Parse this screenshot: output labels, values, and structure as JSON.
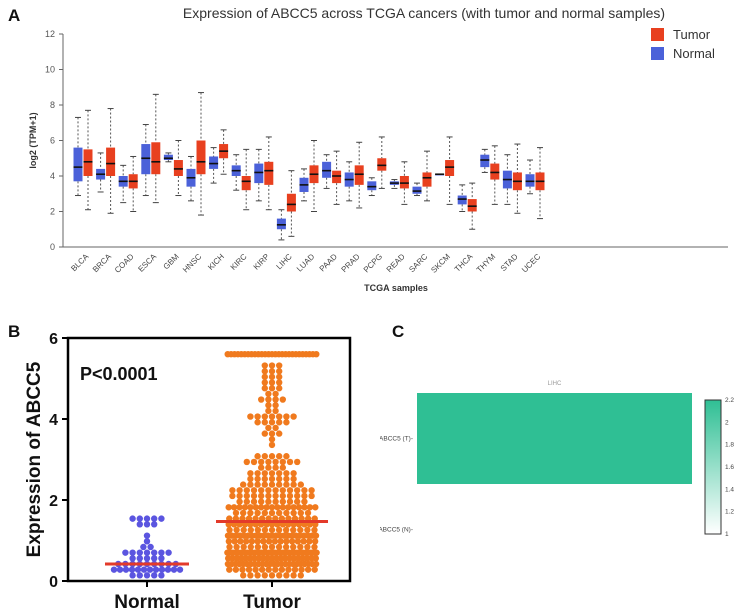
{
  "panels": {
    "a": "A",
    "b": "B",
    "c": "C"
  },
  "colors": {
    "tumor": "#e8401f",
    "normal": "#4b61d9",
    "median": "#111111",
    "dot_normal": "#5b55e0",
    "dot_tumor": "#f07a1e",
    "line_red": "#e33a2a",
    "heat": "#2fbf94",
    "heat_light": "#ffffff"
  },
  "chart_data": [
    {
      "type": "box",
      "title": "Expression of ABCC5 across TCGA cancers (with tumor and normal samples)",
      "xlabel": "TCGA samples",
      "ylabel": "log2 (TPM+1)",
      "ylim": [
        0,
        12
      ],
      "yticks": [
        0,
        2,
        4,
        6,
        8,
        10,
        12
      ],
      "legend": [
        "Tumor",
        "Normal"
      ],
      "categories": [
        "BLCA",
        "BRCA",
        "COAD",
        "ESCA",
        "GBM",
        "HNSC",
        "KICH",
        "KIRC",
        "KIRP",
        "LIHC",
        "LUAD",
        "PAAD",
        "PRAD",
        "PCPG",
        "READ",
        "SARC",
        "SKCM",
        "THCA",
        "THYM",
        "STAD",
        "UCEC"
      ],
      "series": [
        {
          "name": "Normal",
          "boxes": [
            {
              "cat": "BLCA",
              "min": 2.9,
              "q1": 3.7,
              "median": 4.5,
              "q3": 5.6,
              "max": 7.3
            },
            {
              "cat": "BRCA",
              "min": 3.1,
              "q1": 3.8,
              "median": 4.1,
              "q3": 4.4,
              "max": 5.3
            },
            {
              "cat": "COAD",
              "min": 2.5,
              "q1": 3.4,
              "median": 3.7,
              "q3": 4.0,
              "max": 4.6
            },
            {
              "cat": "ESCA",
              "min": 2.9,
              "q1": 4.1,
              "median": 5.0,
              "q3": 5.8,
              "max": 6.9
            },
            {
              "cat": "GBM",
              "min": 4.8,
              "q1": 4.9,
              "median": 5.0,
              "q3": 5.2,
              "max": 5.3
            },
            {
              "cat": "HNSC",
              "min": 2.6,
              "q1": 3.4,
              "median": 3.9,
              "q3": 4.4,
              "max": 5.1
            },
            {
              "cat": "KICH",
              "min": 3.6,
              "q1": 4.4,
              "median": 4.7,
              "q3": 5.1,
              "max": 5.6
            },
            {
              "cat": "KIRC",
              "min": 3.2,
              "q1": 4.0,
              "median": 4.3,
              "q3": 4.6,
              "max": 5.2
            },
            {
              "cat": "KIRP",
              "min": 2.6,
              "q1": 3.6,
              "median": 4.2,
              "q3": 4.7,
              "max": 5.5
            },
            {
              "cat": "LIHC",
              "min": 0.4,
              "q1": 1.0,
              "median": 1.25,
              "q3": 1.6,
              "max": 2.1
            },
            {
              "cat": "LUAD",
              "min": 2.6,
              "q1": 3.1,
              "median": 3.5,
              "q3": 3.9,
              "max": 4.4
            },
            {
              "cat": "PAAD",
              "min": 3.3,
              "q1": 3.9,
              "median": 4.3,
              "q3": 4.8,
              "max": 5.2
            },
            {
              "cat": "PRAD",
              "min": 2.6,
              "q1": 3.4,
              "median": 3.8,
              "q3": 4.2,
              "max": 4.8
            },
            {
              "cat": "PCPG",
              "min": 2.9,
              "q1": 3.2,
              "median": 3.4,
              "q3": 3.7,
              "max": 3.9
            },
            {
              "cat": "READ",
              "min": 3.3,
              "q1": 3.5,
              "median": 3.6,
              "q3": 3.7,
              "max": 3.8
            },
            {
              "cat": "SARC",
              "min": 2.9,
              "q1": 3.0,
              "median": 3.15,
              "q3": 3.4,
              "max": 3.6
            },
            {
              "cat": "SKCM",
              "min": 4.1,
              "q1": 4.1,
              "median": 4.1,
              "q3": 4.1,
              "max": 4.1
            },
            {
              "cat": "THCA",
              "min": 2.0,
              "q1": 2.4,
              "median": 2.7,
              "q3": 2.9,
              "max": 3.5
            },
            {
              "cat": "THYM",
              "min": 4.2,
              "q1": 4.5,
              "median": 4.9,
              "q3": 5.2,
              "max": 5.5
            },
            {
              "cat": "STAD",
              "min": 2.4,
              "q1": 3.3,
              "median": 3.8,
              "q3": 4.3,
              "max": 5.2
            },
            {
              "cat": "UCEC",
              "min": 3.0,
              "q1": 3.4,
              "median": 3.7,
              "q3": 4.1,
              "max": 4.9
            }
          ]
        },
        {
          "name": "Tumor",
          "boxes": [
            {
              "cat": "BLCA",
              "min": 2.1,
              "q1": 4.0,
              "median": 4.8,
              "q3": 5.5,
              "max": 7.7
            },
            {
              "cat": "BRCA",
              "min": 1.9,
              "q1": 4.0,
              "median": 4.7,
              "q3": 5.6,
              "max": 7.8
            },
            {
              "cat": "COAD",
              "min": 2.0,
              "q1": 3.3,
              "median": 3.7,
              "q3": 4.1,
              "max": 5.1
            },
            {
              "cat": "ESCA",
              "min": 2.5,
              "q1": 4.1,
              "median": 4.8,
              "q3": 5.9,
              "max": 8.6
            },
            {
              "cat": "GBM",
              "min": 2.9,
              "q1": 4.0,
              "median": 4.4,
              "q3": 4.9,
              "max": 6.0
            },
            {
              "cat": "HNSC",
              "min": 1.8,
              "q1": 4.1,
              "median": 4.8,
              "q3": 6.0,
              "max": 8.7
            },
            {
              "cat": "KICH",
              "min": 4.1,
              "q1": 5.0,
              "median": 5.4,
              "q3": 5.8,
              "max": 6.6
            },
            {
              "cat": "KIRC",
              "min": 2.1,
              "q1": 3.2,
              "median": 3.7,
              "q3": 4.0,
              "max": 5.5
            },
            {
              "cat": "KIRP",
              "min": 2.1,
              "q1": 3.5,
              "median": 4.3,
              "q3": 4.8,
              "max": 6.2
            },
            {
              "cat": "LIHC",
              "min": 0.6,
              "q1": 2.0,
              "median": 2.4,
              "q3": 3.0,
              "max": 4.3
            },
            {
              "cat": "LUAD",
              "min": 2.0,
              "q1": 3.6,
              "median": 4.1,
              "q3": 4.6,
              "max": 6.0
            },
            {
              "cat": "PAAD",
              "min": 2.4,
              "q1": 3.6,
              "median": 4.0,
              "q3": 4.3,
              "max": 5.4
            },
            {
              "cat": "PRAD",
              "min": 2.2,
              "q1": 3.5,
              "median": 4.1,
              "q3": 4.6,
              "max": 5.9
            },
            {
              "cat": "PCPG",
              "min": 3.3,
              "q1": 4.3,
              "median": 4.6,
              "q3": 5.0,
              "max": 6.2
            },
            {
              "cat": "READ",
              "min": 2.4,
              "q1": 3.3,
              "median": 3.6,
              "q3": 4.0,
              "max": 4.8
            },
            {
              "cat": "SARC",
              "min": 2.6,
              "q1": 3.4,
              "median": 3.9,
              "q3": 4.2,
              "max": 5.4
            },
            {
              "cat": "SKCM",
              "min": 2.4,
              "q1": 4.0,
              "median": 4.5,
              "q3": 4.9,
              "max": 6.2
            },
            {
              "cat": "THCA",
              "min": 1.0,
              "q1": 2.0,
              "median": 2.3,
              "q3": 2.7,
              "max": 3.6
            },
            {
              "cat": "THYM",
              "min": 2.4,
              "q1": 3.8,
              "median": 4.2,
              "q3": 4.7,
              "max": 5.7
            },
            {
              "cat": "STAD",
              "min": 1.9,
              "q1": 3.2,
              "median": 3.7,
              "q3": 4.2,
              "max": 5.8
            },
            {
              "cat": "UCEC",
              "min": 1.6,
              "q1": 3.2,
              "median": 3.7,
              "q3": 4.2,
              "max": 5.6
            }
          ]
        }
      ]
    },
    {
      "type": "scatter",
      "ylabel": "Expression of ABCC5",
      "categories": [
        "Normal",
        "Tumor"
      ],
      "ylim": [
        0,
        6
      ],
      "yticks": [
        0,
        2,
        4,
        6
      ],
      "annotation": "P<0.0001",
      "series": [
        {
          "name": "Normal",
          "n": 50,
          "mean": 0.42,
          "max": 1.48
        },
        {
          "name": "Tumor",
          "n": 370,
          "mean": 1.47,
          "max": 5.58
        }
      ]
    },
    {
      "type": "heatmap",
      "column": "LIHC",
      "rows": [
        "ABCC5 (T)",
        "ABCC5 (N)"
      ],
      "values": [
        [
          2.2
        ],
        [
          1.0
        ]
      ],
      "colorbar": {
        "min": 1,
        "max": 2.2,
        "ticks": [
          "2.2",
          "2",
          "1.8",
          "1.6",
          "1.4",
          "1.2",
          "1"
        ]
      }
    }
  ]
}
